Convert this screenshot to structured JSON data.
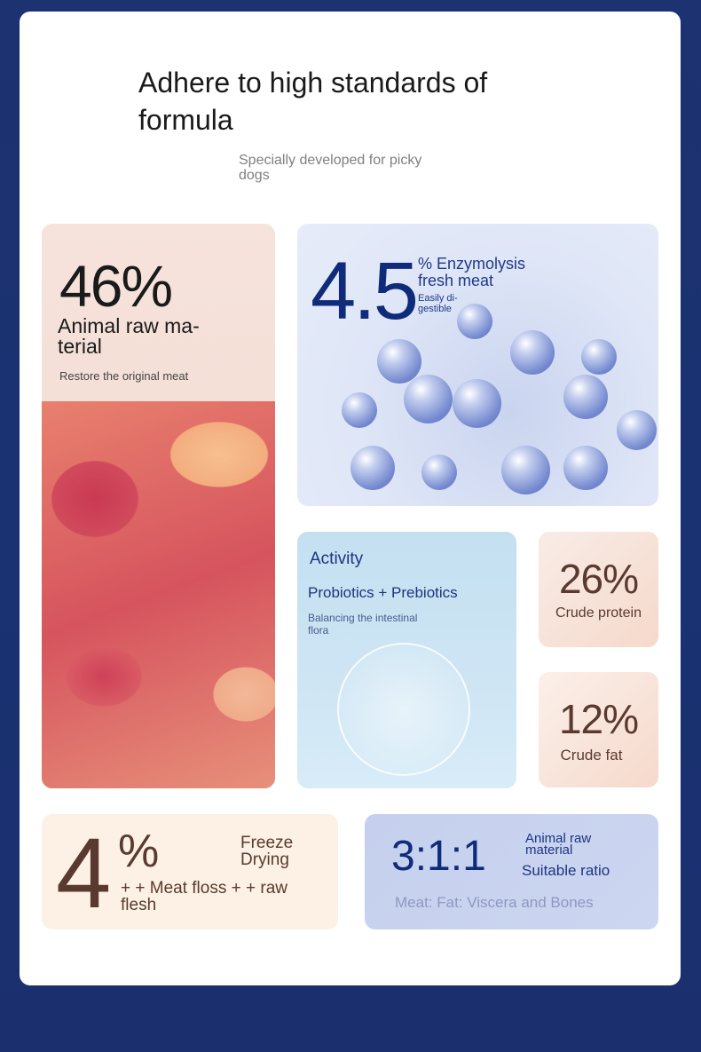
{
  "header": {
    "title": "Adhere to high standards of formula",
    "subtitle": "Specially developed for picky dogs"
  },
  "animal_raw": {
    "value": "46%",
    "label": "Animal raw ma- terial",
    "desc": "Restore the original meat"
  },
  "enzymolysis": {
    "value": "4.5",
    "label": "% Enzymolysis fresh meat",
    "desc": "Easily di- gestible"
  },
  "probiotics": {
    "title": "Activity",
    "label": "Probiotics + Prebiotics",
    "desc": "Balancing the intestinal flora"
  },
  "protein": {
    "value": "26%",
    "label": "Crude protein"
  },
  "fat": {
    "value": "12%",
    "label": "Crude fat"
  },
  "freeze": {
    "value": "4",
    "unit": "%",
    "label": "Freeze Drying",
    "desc": "+ + Meat floss + + raw flesh"
  },
  "ratio": {
    "value": "3:1:1",
    "label": "Animal raw material",
    "sub": "Suitable ratio",
    "desc": "Meat: Fat: Viscera and Bones"
  },
  "colors": {
    "navy": "#1e3a8a",
    "brown": "#5a3a30",
    "background": "#1d3270"
  }
}
